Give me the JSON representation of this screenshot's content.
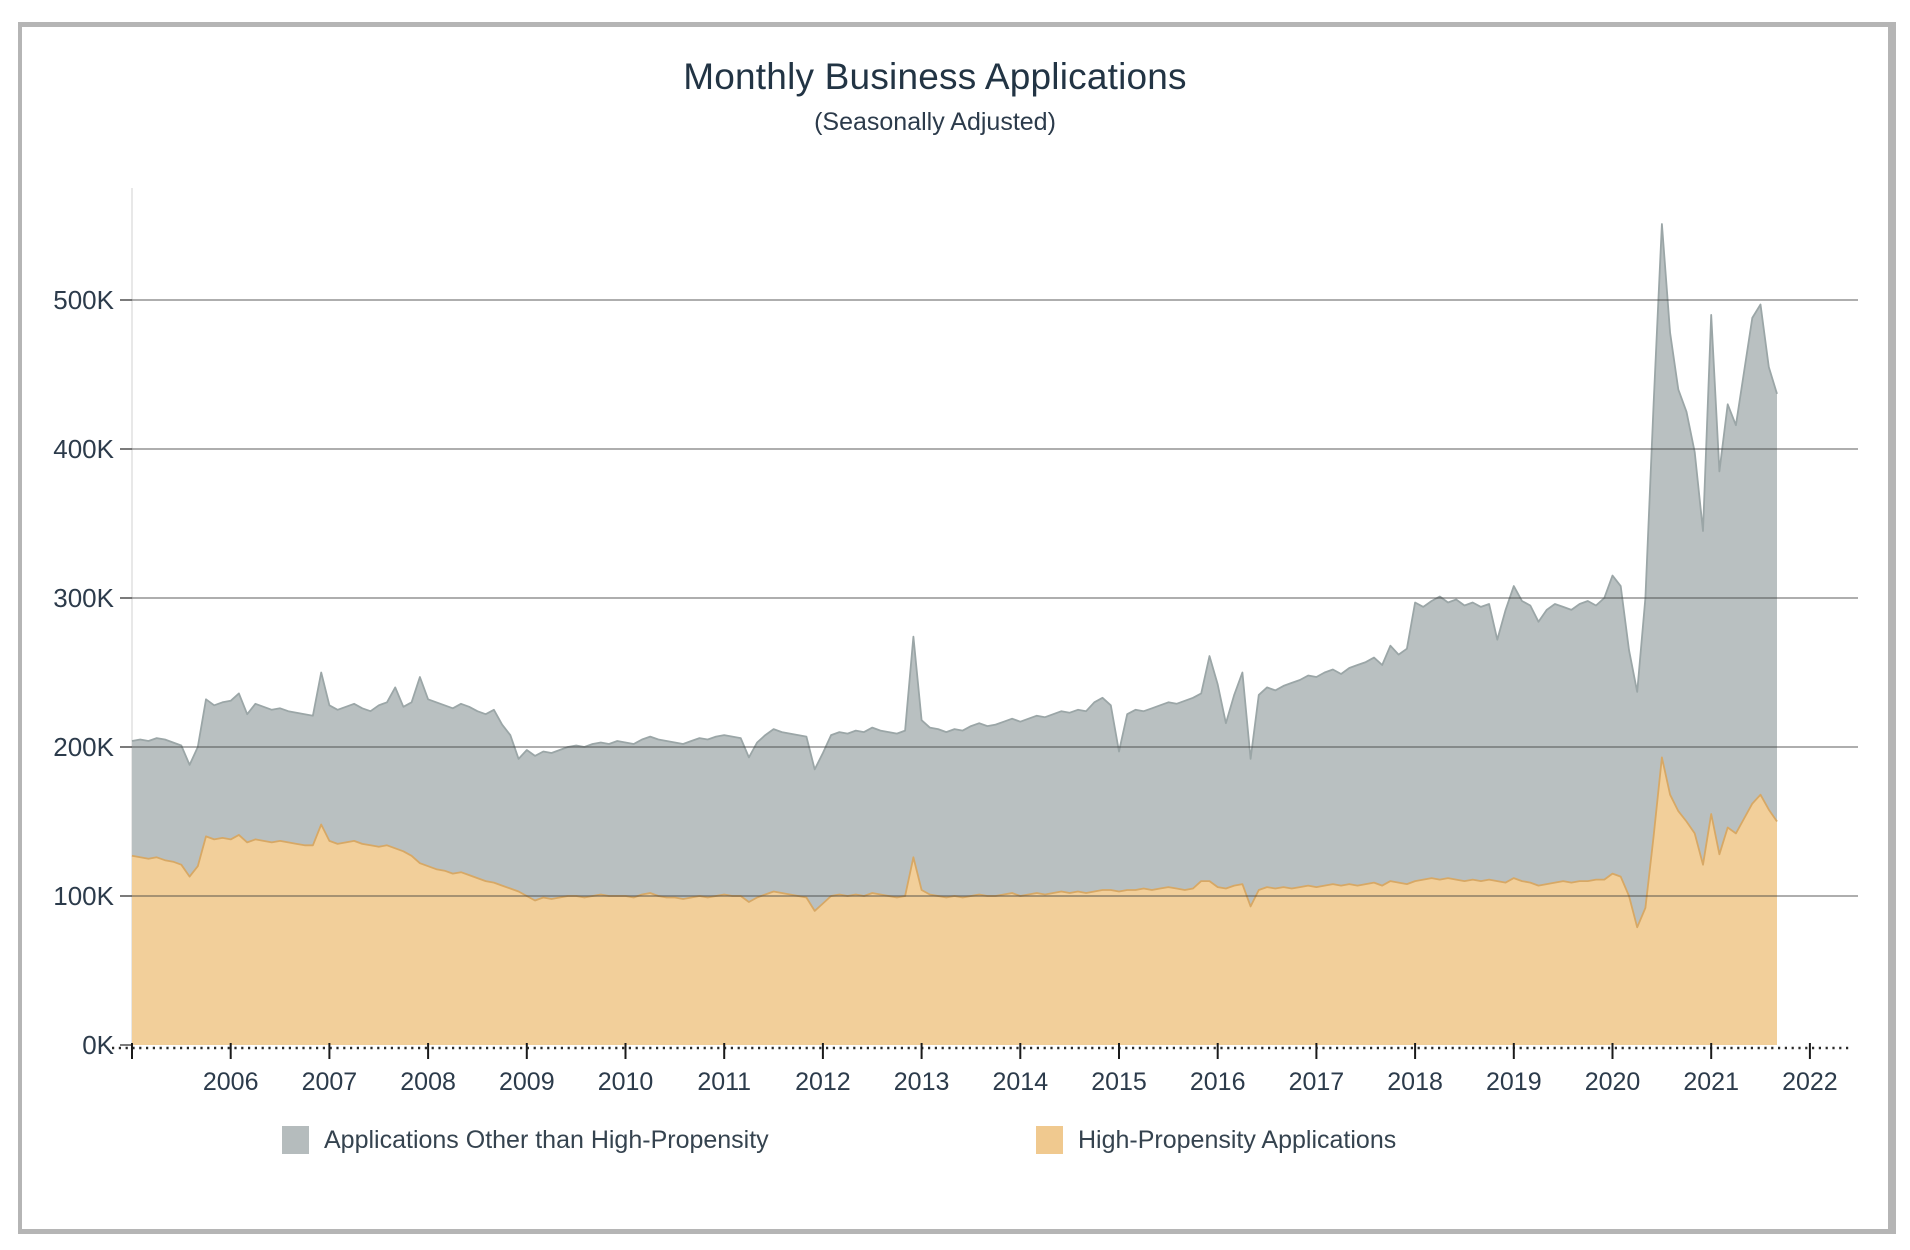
{
  "title": "Monthly Business Applications",
  "subtitle": "(Seasonally Adjusted)",
  "chart_data": {
    "type": "area",
    "stacked": true,
    "title": "Monthly Business Applications",
    "subtitle": "(Seasonally Adjusted)",
    "unit": "thousands of applications",
    "x_start_year": 2005,
    "x_start_month": 1,
    "x_frequency": "monthly",
    "x_tick_labels": [
      "2006",
      "2007",
      "2008",
      "2009",
      "2010",
      "2011",
      "2012",
      "2013",
      "2014",
      "2015",
      "2016",
      "2017",
      "2018",
      "2019",
      "2020",
      "2021",
      "2022"
    ],
    "y_tick_labels": [
      "0K",
      "100K",
      "200K",
      "300K",
      "400K",
      "500K"
    ],
    "y_tick_values": [
      0,
      100,
      200,
      300,
      400,
      500
    ],
    "ylim": [
      0,
      580
    ],
    "grid": "horizontal",
    "legend_position": "bottom",
    "colors": {
      "other_fill": "#b9c0c1",
      "other_edge": "#9ba6a7",
      "hp_fill": "#f2cf9a",
      "hp_edge": "#d7a865",
      "gridline": "rgba(60,60,60,0.55)",
      "axis_text": "#2c3b4b",
      "dotted_axis": "#2a2a2a",
      "y_axis_line": "#e2e2e2"
    },
    "series": [
      {
        "name": "Applications Other than High-Propensity",
        "role": "stack-top",
        "color": "#b9c0c1",
        "values": [
          77,
          79,
          79,
          80,
          81,
          80,
          80,
          75,
          80,
          92,
          90,
          91,
          93,
          95,
          86,
          91,
          90,
          89,
          89,
          88,
          88,
          88,
          87,
          102,
          91,
          90,
          91,
          92,
          91,
          90,
          95,
          96,
          108,
          97,
          103,
          125,
          112,
          112,
          111,
          111,
          113,
          113,
          112,
          112,
          116,
          108,
          103,
          89,
          98,
          97,
          98,
          98,
          99,
          100,
          101,
          101,
          102,
          102,
          102,
          104,
          103,
          103,
          104,
          105,
          105,
          105,
          104,
          104,
          105,
          106,
          106,
          107,
          107,
          107,
          106,
          97,
          104,
          107,
          109,
          108,
          108,
          108,
          108,
          95,
          101,
          108,
          109,
          109,
          110,
          110,
          111,
          110,
          110,
          110,
          111,
          148,
          114,
          112,
          112,
          111,
          112,
          112,
          114,
          115,
          114,
          115,
          116,
          117,
          117,
          118,
          119,
          119,
          120,
          121,
          121,
          122,
          122,
          127,
          129,
          124,
          94,
          118,
          121,
          119,
          122,
          123,
          124,
          124,
          127,
          128,
          126,
          151,
          136,
          111,
          128,
          142,
          99,
          131,
          134,
          133,
          135,
          138,
          139,
          141,
          141,
          143,
          144,
          142,
          145,
          148,
          149,
          151,
          148,
          158,
          153,
          158,
          187,
          183,
          186,
          190,
          185,
          188,
          185,
          186,
          184,
          185,
          162,
          183,
          196,
          188,
          186,
          177,
          184,
          187,
          184,
          183,
          186,
          188,
          184,
          189,
          200,
          195,
          165,
          158,
          208,
          290,
          358,
          310,
          283,
          275,
          256,
          224,
          335,
          257,
          284,
          274,
          300,
          326,
          329,
          297,
          287
        ]
      },
      {
        "name": "High-Propensity Applications",
        "role": "stack-bottom",
        "color": "#f2cf9a",
        "values": [
          127,
          126,
          125,
          126,
          124,
          123,
          121,
          113,
          120,
          140,
          138,
          139,
          138,
          141,
          136,
          138,
          137,
          136,
          137,
          136,
          135,
          134,
          134,
          148,
          137,
          135,
          136,
          137,
          135,
          134,
          133,
          134,
          132,
          130,
          127,
          122,
          120,
          118,
          117,
          115,
          116,
          114,
          112,
          110,
          109,
          107,
          105,
          103,
          100,
          97,
          99,
          98,
          99,
          100,
          100,
          99,
          100,
          101,
          100,
          100,
          100,
          99,
          101,
          102,
          100,
          99,
          99,
          98,
          99,
          100,
          99,
          100,
          101,
          100,
          100,
          96,
          99,
          101,
          103,
          102,
          101,
          100,
          99,
          90,
          95,
          100,
          101,
          100,
          101,
          100,
          102,
          101,
          100,
          99,
          100,
          126,
          104,
          101,
          100,
          99,
          100,
          99,
          100,
          101,
          100,
          100,
          101,
          102,
          100,
          101,
          102,
          101,
          102,
          103,
          102,
          103,
          102,
          103,
          104,
          104,
          103,
          104,
          104,
          105,
          104,
          105,
          106,
          105,
          104,
          105,
          110,
          110,
          106,
          105,
          107,
          108,
          93,
          104,
          106,
          105,
          106,
          105,
          106,
          107,
          106,
          107,
          108,
          107,
          108,
          107,
          108,
          109,
          107,
          110,
          109,
          108,
          110,
          111,
          112,
          111,
          112,
          111,
          110,
          111,
          110,
          111,
          110,
          109,
          112,
          110,
          109,
          107,
          108,
          109,
          110,
          109,
          110,
          110,
          111,
          111,
          115,
          113,
          100,
          79,
          92,
          140,
          193,
          168,
          157,
          150,
          142,
          121,
          155,
          128,
          146,
          142,
          152,
          162,
          168,
          158,
          150
        ]
      }
    ]
  },
  "legend": {
    "items": [
      {
        "label": "Applications Other than High-Propensity",
        "color": "#b5bcbd"
      },
      {
        "label": "High-Propensity Applications",
        "color": "#f0c98f"
      }
    ]
  }
}
